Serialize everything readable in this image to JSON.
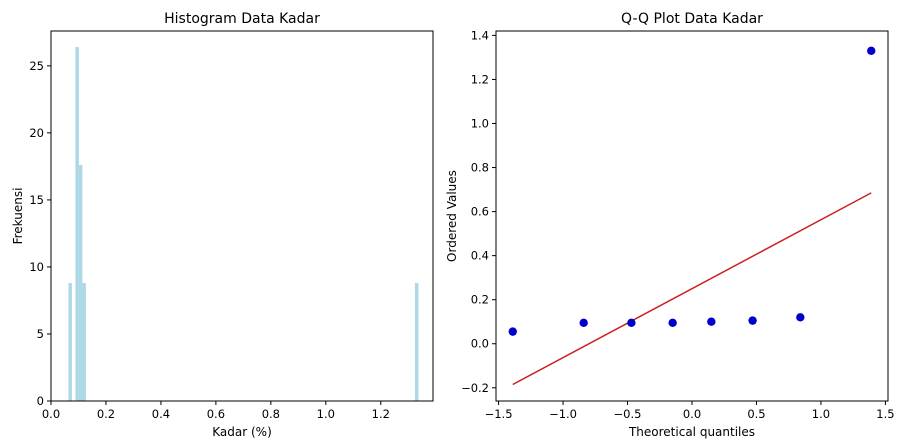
{
  "chart_data": [
    {
      "type": "bar",
      "subtype": "histogram",
      "title": "Histogram Data Kadar",
      "xlabel": "Kadar (%)",
      "ylabel": "Frekuensi",
      "xlim": [
        0.0,
        1.39
      ],
      "ylim": [
        0,
        27.6
      ],
      "xticks": [
        0.0,
        0.2,
        0.4,
        0.6,
        0.8,
        1.0,
        1.2
      ],
      "xtick_labels": [
        "0.0",
        "0.2",
        "0.4",
        "0.6",
        "0.8",
        "1.0",
        "1.2"
      ],
      "yticks": [
        0,
        5,
        10,
        15,
        20,
        25
      ],
      "ytick_labels": [
        "0",
        "5",
        "10",
        "15",
        "20",
        "25"
      ],
      "bin_width": 0.0127,
      "bins": [
        {
          "x": 0.0635,
          "count": 8.8
        },
        {
          "x": 0.0889,
          "count": 26.4
        },
        {
          "x": 0.1016,
          "count": 17.6
        },
        {
          "x": 0.1143,
          "count": 8.8
        },
        {
          "x": 1.3243,
          "count": 8.8
        }
      ],
      "bar_color": "#add8e6",
      "grid": false,
      "legend": "none"
    },
    {
      "type": "scatter",
      "title": "Q-Q Plot Data Kadar",
      "xlabel": "Theoretical quantiles",
      "ylabel": "Ordered Values",
      "xlim": [
        -1.52,
        1.52
      ],
      "ylim": [
        -0.26,
        1.42
      ],
      "xticks": [
        -1.5,
        -1.0,
        -0.5,
        0.0,
        0.5,
        1.0,
        1.5
      ],
      "xtick_labels": [
        "−1.5",
        "−1.0",
        "−0.5",
        "0.0",
        "0.5",
        "1.0",
        "1.5"
      ],
      "yticks": [
        -0.2,
        0.0,
        0.2,
        0.4,
        0.6,
        0.8,
        1.0,
        1.2,
        1.4
      ],
      "ytick_labels": [
        "−0.2",
        "0.0",
        "0.2",
        "0.4",
        "0.6",
        "0.8",
        "1.0",
        "1.2",
        "1.4"
      ],
      "points": [
        {
          "x": -1.39,
          "y": 0.055
        },
        {
          "x": -0.84,
          "y": 0.095
        },
        {
          "x": -0.47,
          "y": 0.095
        },
        {
          "x": -0.15,
          "y": 0.095
        },
        {
          "x": 0.15,
          "y": 0.1
        },
        {
          "x": 0.47,
          "y": 0.105
        },
        {
          "x": 0.84,
          "y": 0.12
        },
        {
          "x": 1.39,
          "y": 1.33
        }
      ],
      "fit_line": {
        "x": [
          -1.39,
          1.39
        ],
        "y": [
          -0.185,
          0.685
        ]
      },
      "point_color": "#0000cc",
      "line_color": "#cc2222",
      "grid": false,
      "legend": "none"
    }
  ]
}
